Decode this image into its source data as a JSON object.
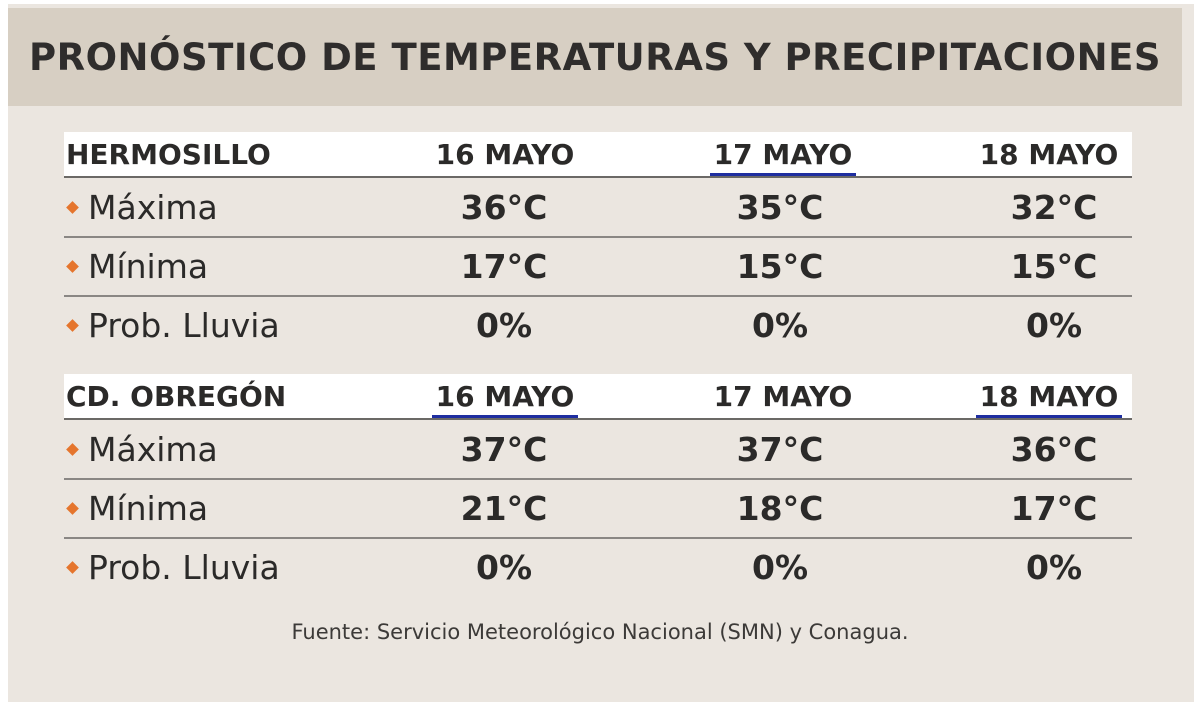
{
  "title": "PRONÓSTICO DE TEMPERATURAS Y PRECIPITACIONES",
  "cities": [
    {
      "name": "HERMOSILLO",
      "dates": [
        "16 MAYO",
        "17 MAYO",
        "18 MAYO"
      ],
      "rows": [
        {
          "label": "Máxima",
          "values": [
            "36°C",
            "35°C",
            "32°C"
          ]
        },
        {
          "label": "Mínima",
          "values": [
            "17°C",
            "15°C",
            "15°C"
          ]
        },
        {
          "label": "Prob. Lluvia",
          "values": [
            "0%",
            "0%",
            "0%"
          ]
        }
      ]
    },
    {
      "name": "CD. OBREGÓN",
      "dates": [
        "16 MAYO",
        "17 MAYO",
        "18 MAYO"
      ],
      "rows": [
        {
          "label": "Máxima",
          "values": [
            "37°C",
            "37°C",
            "36°C"
          ]
        },
        {
          "label": "Mínima",
          "values": [
            "21°C",
            "18°C",
            "17°C"
          ]
        },
        {
          "label": "Prob. Lluvia",
          "values": [
            "0%",
            "0%",
            "0%"
          ]
        }
      ]
    }
  ],
  "source": "Fuente: Servicio Meteorológico Nacional (SMN) y Conagua.",
  "colors": {
    "header_bg": "#d7cfc3",
    "bullet": "#e5752d",
    "underline": "#1f2ea0"
  }
}
